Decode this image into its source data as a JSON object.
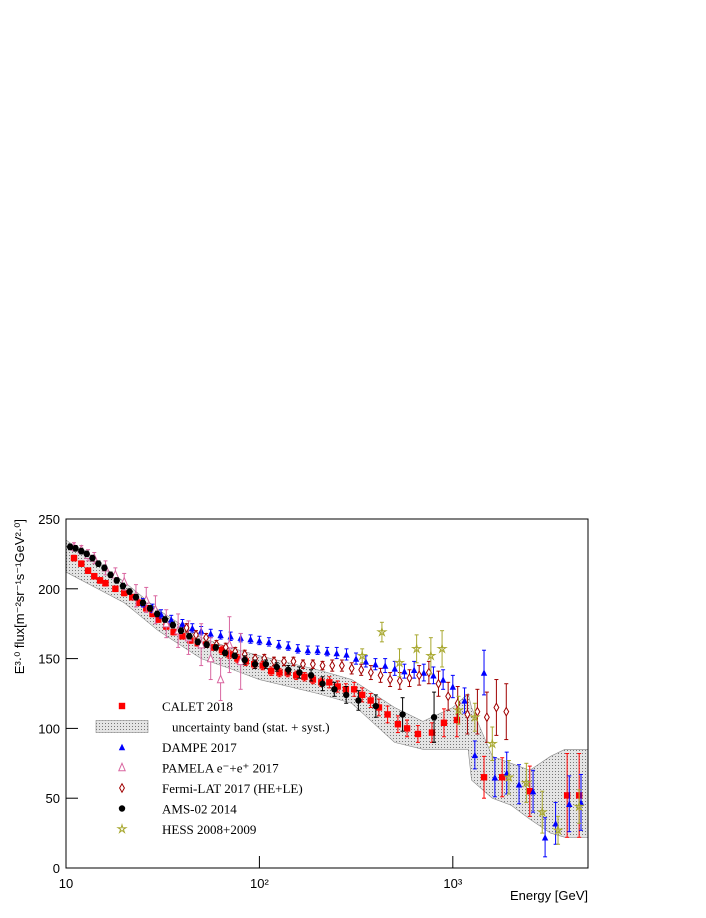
{
  "chart_data": {
    "type": "errorbar-scatter",
    "xlabel": "Energy [GeV]",
    "ylabel": "E³·⁰ flux[m⁻²sr⁻¹s⁻¹GeV²·⁰]",
    "xlim": [
      10,
      5000
    ],
    "ylim": [
      0,
      250
    ],
    "xscale": "log",
    "xticks": [
      {
        "value": 10,
        "label": "10"
      },
      {
        "value": 100,
        "label": "10²"
      },
      {
        "value": 1000,
        "label": "10³"
      }
    ],
    "yticks": [
      0,
      50,
      100,
      150,
      200,
      250
    ],
    "legend": "lower left",
    "band": {
      "name": "uncertainty band (stat. + syst.)",
      "x": [
        10,
        20,
        30,
        50,
        70,
        100,
        200,
        300,
        500,
        700,
        1000,
        1200,
        1250,
        1600,
        2000,
        2500,
        3200,
        3800,
        5000
      ],
      "lower": [
        212,
        190,
        170,
        150,
        143,
        135,
        125,
        118,
        90,
        85,
        85,
        85,
        63,
        50,
        45,
        35,
        25,
        22,
        22
      ],
      "upper": [
        235,
        205,
        185,
        165,
        158,
        152,
        142,
        135,
        115,
        105,
        115,
        125,
        115,
        80,
        75,
        70,
        80,
        85,
        85
      ]
    },
    "series": [
      {
        "name": "CALET 2018",
        "color": "#ff0000",
        "marker": "square",
        "x": [
          11,
          12,
          13,
          14,
          15,
          16,
          18,
          20,
          22,
          24,
          26,
          28,
          30,
          33,
          36,
          40,
          44,
          48,
          53,
          58,
          64,
          70,
          77,
          85,
          94,
          104,
          115,
          127,
          140,
          155,
          171,
          189,
          209,
          230,
          254,
          280,
          309,
          340,
          376,
          415,
          460,
          520,
          580,
          660,
          780,
          900,
          1050,
          1450,
          1800,
          2500,
          3900,
          4500
        ],
        "values": [
          222,
          218,
          213,
          209,
          206,
          204,
          200,
          197,
          194,
          190,
          186,
          182,
          178,
          173,
          169,
          166,
          163,
          161,
          160,
          158,
          156,
          153,
          150,
          148,
          146,
          145,
          141,
          140,
          140,
          138,
          137,
          135,
          133,
          133,
          130,
          128,
          128,
          124,
          120,
          115,
          110,
          103,
          100,
          96,
          97,
          104,
          106,
          65,
          65,
          55,
          52,
          52
        ],
        "errors": [
          2,
          2,
          2,
          2,
          2,
          2,
          2,
          2,
          2,
          2,
          2,
          2,
          2,
          2,
          2,
          2,
          2,
          2,
          2,
          2,
          3,
          3,
          3,
          3,
          3,
          3,
          3,
          3,
          3,
          3,
          3,
          3,
          3,
          4,
          4,
          4,
          5,
          5,
          5,
          6,
          6,
          6,
          6,
          6,
          7,
          10,
          12,
          15,
          14,
          18,
          30,
          30
        ]
      },
      {
        "name": "DAMPE 2017",
        "color": "#0000ff",
        "marker": "triangle",
        "x": [
          25,
          28,
          31,
          35,
          40,
          45,
          50,
          56,
          63,
          71,
          80,
          90,
          100,
          112,
          126,
          141,
          158,
          178,
          200,
          224,
          251,
          282,
          316,
          355,
          398,
          447,
          501,
          562,
          631,
          708,
          794,
          891,
          1000,
          1150,
          1300,
          1450,
          1650,
          1900,
          2200,
          2600,
          3000,
          3400,
          4000,
          4600
        ],
        "values": [
          190,
          186,
          182,
          178,
          175,
          172,
          170,
          168,
          167,
          166,
          165,
          164,
          163,
          162,
          160,
          159,
          157,
          156,
          156,
          155,
          154,
          153,
          150,
          148,
          146,
          145,
          143,
          141,
          142,
          140,
          138,
          135,
          130,
          120,
          81,
          140,
          65,
          68,
          60,
          55,
          22,
          32,
          46,
          47
        ],
        "errors": [
          3,
          3,
          3,
          3,
          3,
          3,
          3,
          3,
          3,
          3,
          3,
          3,
          3,
          3,
          3,
          3,
          3,
          3,
          3,
          3,
          4,
          4,
          4,
          4,
          4,
          5,
          5,
          5,
          6,
          6,
          6,
          7,
          8,
          9,
          10,
          16,
          14,
          15,
          14,
          15,
          14,
          15,
          20,
          20
        ]
      },
      {
        "name": "PAMELA e⁻+e⁺ 2017",
        "color": "#d966a0",
        "marker": "open-triangle",
        "x": [
          11,
          12,
          13,
          14,
          16,
          18,
          20,
          23,
          26,
          29,
          33,
          38,
          43,
          50,
          56,
          63,
          70,
          80
        ],
        "values": [
          230,
          228,
          224,
          222,
          215,
          210,
          205,
          195,
          192,
          185,
          175,
          170,
          165,
          160,
          150,
          135,
          160,
          148
        ],
        "errors": [
          3,
          3,
          4,
          4,
          5,
          5,
          6,
          8,
          9,
          10,
          10,
          12,
          12,
          15,
          15,
          15,
          20,
          20
        ]
      },
      {
        "name": "Fermi-LAT 2017 (HE+LE)",
        "color": "#a00000",
        "marker": "open-diamond",
        "x": [
          42,
          47,
          53,
          60,
          67,
          75,
          84,
          95,
          106,
          119,
          134,
          150,
          168,
          189,
          212,
          238,
          267,
          300,
          336,
          377,
          423,
          474,
          532,
          597,
          670,
          752,
          843,
          946,
          1060,
          1190,
          1340,
          1500,
          1680,
          1890
        ],
        "values": [
          172,
          167,
          165,
          160,
          158,
          155,
          153,
          150,
          150,
          148,
          148,
          148,
          146,
          146,
          145,
          145,
          145,
          143,
          142,
          140,
          138,
          135,
          134,
          136,
          138,
          140,
          132,
          123,
          118,
          110,
          112,
          108,
          115,
          112
        ],
        "errors": [
          3,
          3,
          3,
          3,
          3,
          3,
          3,
          3,
          3,
          3,
          3,
          3,
          3,
          3,
          3,
          4,
          4,
          4,
          4,
          5,
          5,
          5,
          6,
          6,
          7,
          8,
          9,
          10,
          12,
          14,
          16,
          18,
          20,
          20
        ]
      },
      {
        "name": "AMS-02 2014",
        "color": "#000000",
        "marker": "circle",
        "x": [
          10.5,
          11.2,
          12,
          12.8,
          13.7,
          14.7,
          15.8,
          17,
          18.3,
          19.7,
          21.3,
          23,
          25,
          27.2,
          29.6,
          32.5,
          35.7,
          39.3,
          43.4,
          48,
          53.4,
          59.5,
          66.5,
          74.5,
          84,
          95,
          108,
          123,
          141,
          161,
          185,
          212,
          244,
          281,
          325,
          400,
          550,
          800
        ],
        "values": [
          230,
          229,
          227,
          225,
          222,
          218,
          215,
          210,
          206,
          202,
          198,
          194,
          190,
          186,
          182,
          178,
          174,
          170,
          166,
          162,
          160,
          158,
          154,
          152,
          149,
          146,
          146,
          144,
          142,
          140,
          138,
          132,
          128,
          124,
          120,
          116,
          110,
          108
        ],
        "errors": [
          2,
          2,
          2,
          2,
          2,
          2,
          2,
          2,
          2,
          2,
          2,
          2,
          2,
          2,
          2,
          2,
          2,
          2,
          2,
          2,
          2,
          2,
          2,
          2,
          3,
          3,
          3,
          3,
          3,
          4,
          4,
          5,
          5,
          6,
          7,
          8,
          12,
          18
        ]
      },
      {
        "name": "HESS 2008+2009",
        "color": "#a8a830",
        "marker": "star",
        "x": [
          340,
          430,
          530,
          650,
          770,
          880,
          1070,
          1300,
          1600,
          1950,
          2400,
          2900,
          3500,
          4500
        ],
        "values": [
          152,
          169,
          147,
          157,
          152,
          157,
          113,
          108,
          89,
          65,
          61,
          40,
          27,
          44
        ],
        "errors": [
          5,
          7,
          10,
          10,
          13,
          13,
          10,
          10,
          12,
          12,
          14,
          15,
          10,
          12
        ]
      }
    ]
  }
}
